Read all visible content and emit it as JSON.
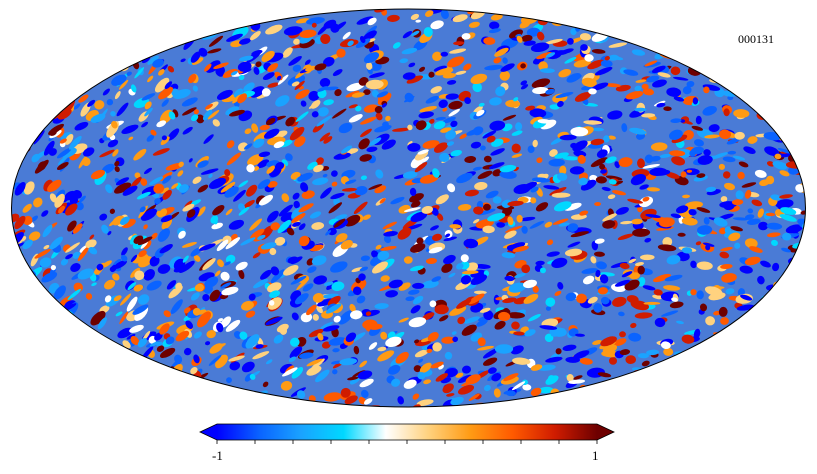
{
  "map": {
    "id": "000131",
    "projection": "mollweide",
    "colormap": "planck",
    "colorbar": {
      "min_label": "-1",
      "max_label": "1",
      "min": -1,
      "max": 1,
      "ticks": 10,
      "stops": [
        "#0000ff",
        "#0a63ff",
        "#1aa3ff",
        "#00d8ff",
        "#ffffff",
        "#ffd27f",
        "#ff9b14",
        "#ff5a00",
        "#d01c00",
        "#6e0000"
      ]
    }
  }
}
